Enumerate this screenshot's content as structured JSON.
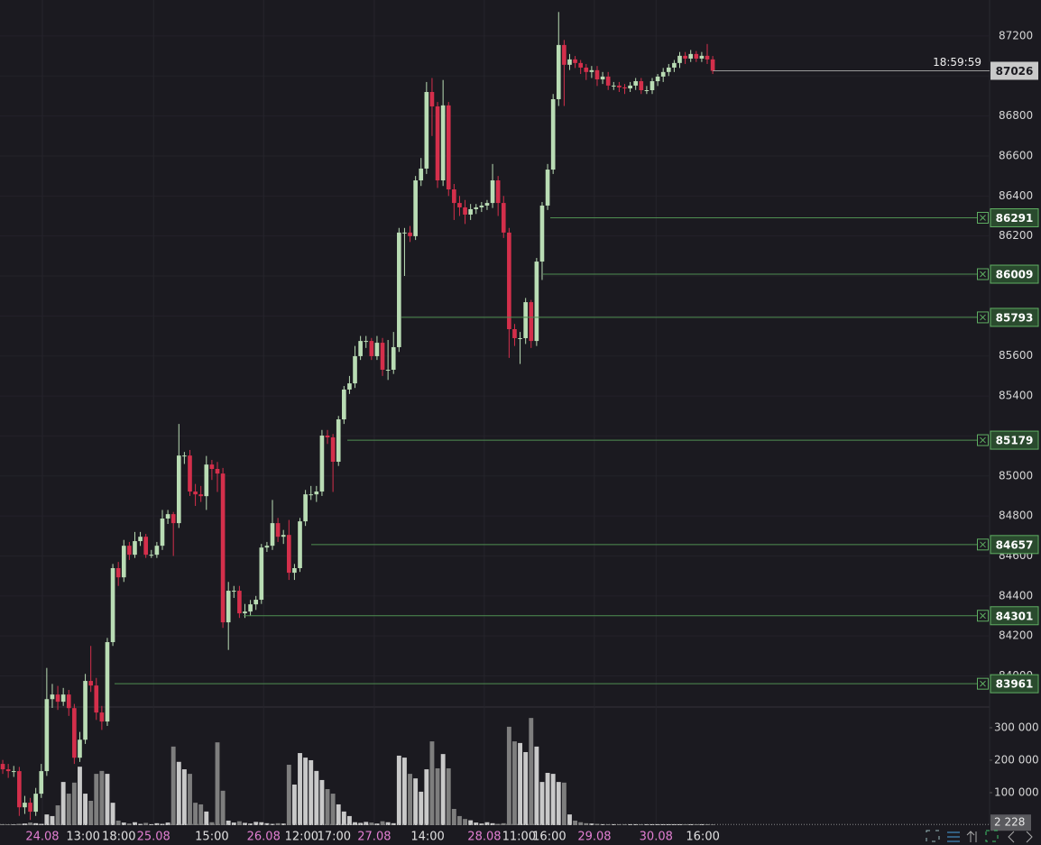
{
  "chart_data": {
    "type": "candlestick",
    "open": [
      83560,
      83533,
      83524,
      83524,
      83343,
      83366,
      83321,
      83411,
      83524,
      83884,
      83907,
      83871,
      83907,
      83839,
      83591,
      83681,
      83975,
      83952,
      83817,
      83772,
      84169,
      84539,
      84493,
      84651,
      84606,
      84674,
      84696,
      84606,
      84606,
      84651,
      84787,
      84809,
      84764,
      85102,
      85102,
      84922,
      84908,
      84899,
      85057,
      85035,
      85012,
      84268,
      84426,
      84426,
      84313,
      84322,
      84358,
      84381,
      84642,
      84651,
      84764,
      84696,
      84705,
      84516,
      84539,
      84773,
      84908,
      84908,
      84922,
      85202,
      85193,
      85071,
      85283,
      85432,
      85463,
      85599,
      85675,
      85675,
      85599,
      85666,
      85531,
      85531,
      85644,
      86217,
      86217,
      86199,
      86478,
      86537,
      86920,
      86848,
      86478,
      86853,
      86433,
      86365,
      86343,
      86307,
      86334,
      86343,
      86352,
      86365,
      86478,
      86365,
      86217,
      85734,
      85689,
      85689,
      85869,
      85675,
      86072,
      86352,
      86532,
      86884,
      87155,
      87056,
      87083,
      87065,
      87042,
      87020,
      87029,
      86983,
      86997,
      86952,
      86952,
      86943,
      86938,
      86952,
      86974,
      86929,
      86929,
      86974,
      86997,
      87020,
      87042,
      87065,
      87101,
      87087,
      87110,
      87087,
      87101,
      87083
    ],
    "high": [
      83580,
      83560,
      83550,
      83545,
      83400,
      83390,
      83440,
      83560,
      84040,
      83960,
      83950,
      83940,
      83930,
      83860,
      83720,
      84010,
      84150,
      83990,
      83850,
      84190,
      84560,
      84570,
      84680,
      84670,
      84720,
      84720,
      84710,
      84630,
      84670,
      84830,
      84830,
      84820,
      85260,
      85120,
      85130,
      84960,
      84950,
      85100,
      85080,
      85070,
      85040,
      84470,
      84450,
      84450,
      84360,
      84380,
      84400,
      84660,
      84670,
      84880,
      84790,
      84730,
      84780,
      84560,
      84790,
      84930,
      84950,
      84950,
      85230,
      85230,
      85210,
      85300,
      85450,
      85500,
      85650,
      85700,
      85700,
      85690,
      85700,
      85690,
      85680,
      85720,
      86240,
      86240,
      86250,
      86500,
      86590,
      86970,
      86990,
      86870,
      86980,
      86870,
      86460,
      86400,
      86380,
      86360,
      86360,
      86370,
      86380,
      86560,
      86500,
      86400,
      86240,
      85760,
      85720,
      85890,
      85880,
      86090,
      86370,
      86560,
      86910,
      87320,
      87180,
      87110,
      87100,
      87080,
      87060,
      87050,
      87050,
      87020,
      87020,
      86970,
      86970,
      86960,
      86970,
      86990,
      86990,
      86950,
      86990,
      87010,
      87040,
      87060,
      87080,
      87120,
      87120,
      87130,
      87125,
      87120,
      87160,
      87100
    ],
    "low": [
      83510,
      83490,
      83495,
      83300,
      83310,
      83280,
      83300,
      83390,
      83500,
      83840,
      83830,
      83850,
      83800,
      83560,
      83570,
      83660,
      83920,
      83780,
      83730,
      83750,
      84150,
      84450,
      84470,
      84580,
      84590,
      84650,
      84590,
      84590,
      84590,
      84630,
      84760,
      84600,
      84740,
      85060,
      84900,
      84850,
      84870,
      84830,
      84980,
      84920,
      84240,
      84130,
      84390,
      84290,
      84290,
      84300,
      84330,
      84360,
      84620,
      84630,
      84670,
      84660,
      84480,
      84480,
      84520,
      84750,
      84880,
      84870,
      84900,
      85160,
      84920,
      85050,
      85260,
      85410,
      85440,
      85580,
      85640,
      85580,
      85580,
      85500,
      85480,
      85510,
      85620,
      86000,
      86170,
      86180,
      86450,
      86510,
      86700,
      86440,
      86450,
      86400,
      86280,
      86300,
      86260,
      86280,
      86310,
      86320,
      86330,
      86340,
      86300,
      86190,
      85590,
      85650,
      85560,
      85660,
      85640,
      85650,
      85980,
      86330,
      86510,
      86850,
      86850,
      87030,
      87040,
      87010,
      86980,
      86990,
      86950,
      86960,
      86930,
      86930,
      86920,
      86910,
      86920,
      86930,
      86910,
      86910,
      86910,
      86950,
      86970,
      87000,
      87020,
      87040,
      87060,
      87070,
      87070,
      87070,
      87060,
      87010
    ],
    "close": [
      83533,
      83524,
      83524,
      83343,
      83366,
      83321,
      83411,
      83524,
      83884,
      83907,
      83871,
      83907,
      83839,
      83591,
      83681,
      83975,
      83952,
      83817,
      83772,
      84169,
      84539,
      84493,
      84651,
      84606,
      84674,
      84696,
      84606,
      84606,
      84651,
      84787,
      84809,
      84764,
      85102,
      85102,
      84922,
      84908,
      84899,
      85057,
      85035,
      85012,
      84268,
      84426,
      84426,
      84313,
      84322,
      84358,
      84381,
      84642,
      84651,
      84764,
      84696,
      84705,
      84516,
      84539,
      84773,
      84908,
      84908,
      84922,
      85202,
      85193,
      85071,
      85283,
      85432,
      85463,
      85599,
      85675,
      85675,
      85599,
      85666,
      85531,
      85531,
      85644,
      86217,
      86217,
      86199,
      86478,
      86537,
      86920,
      86848,
      86478,
      86853,
      86433,
      86365,
      86343,
      86307,
      86334,
      86343,
      86352,
      86365,
      86478,
      86365,
      86217,
      85734,
      85689,
      85689,
      85869,
      85675,
      86072,
      86352,
      86532,
      86884,
      87155,
      87056,
      87083,
      87065,
      87042,
      87020,
      87029,
      86983,
      86997,
      86952,
      86952,
      86943,
      86938,
      86952,
      86974,
      86929,
      86929,
      86974,
      86997,
      87020,
      87042,
      87065,
      87101,
      87087,
      87110,
      87087,
      87101,
      87083,
      87026
    ],
    "volume": [
      3000,
      2500,
      2000,
      4000,
      5000,
      8000,
      6000,
      4000,
      33000,
      28000,
      61000,
      133000,
      97000,
      131000,
      180000,
      97000,
      75000,
      158000,
      167000,
      158000,
      69000,
      14000,
      8000,
      5000,
      9000,
      4000,
      7000,
      3000,
      6000,
      4000,
      8000,
      242000,
      195000,
      172000,
      158000,
      69000,
      64000,
      42000,
      9000,
      255000,
      106000,
      14000,
      8000,
      12000,
      7000,
      5000,
      10000,
      9000,
      6000,
      4000,
      6000,
      5000,
      186000,
      125000,
      222000,
      208000,
      200000,
      167000,
      139000,
      111000,
      97000,
      64000,
      42000,
      28000,
      9000,
      7000,
      10000,
      8000,
      5000,
      12000,
      9000,
      6000,
      214000,
      208000,
      158000,
      144000,
      103000,
      172000,
      258000,
      175000,
      219000,
      175000,
      50000,
      28000,
      19000,
      15000,
      8000,
      5000,
      9000,
      6000,
      4000,
      6000,
      303000,
      258000,
      253000,
      225000,
      330000,
      242000,
      133000,
      161000,
      158000,
      133000,
      131000,
      33000,
      14000,
      9000,
      6000,
      5000,
      4000,
      3000,
      3000,
      3000,
      3000,
      3000,
      3000,
      3000,
      3000,
      3000,
      3000,
      3000,
      3000,
      3000,
      3000,
      3000,
      3000,
      3000,
      3000,
      3000,
      3000,
      2228
    ],
    "up_color": "#b9dcb4",
    "down_color": "#d42f4b",
    "xlim": [
      -0.5,
      179.3
    ],
    "xticks": [
      {
        "value": 7.2,
        "label": "24.08"
      },
      {
        "value": 14.6,
        "label": "13:00"
      },
      {
        "value": 21.1,
        "label": "18:00"
      },
      {
        "value": 27.4,
        "label": "25.08"
      },
      {
        "value": 38,
        "label": "15:00"
      },
      {
        "value": 47.4,
        "label": "26.08"
      },
      {
        "value": 54.3,
        "label": "12:00"
      },
      {
        "value": 60.2,
        "label": "17:00"
      },
      {
        "value": 67.5,
        "label": "27.08"
      },
      {
        "value": 77.2,
        "label": "14:00"
      },
      {
        "value": 87.5,
        "label": "28.08"
      },
      {
        "value": 93.8,
        "label": "11:00"
      },
      {
        "value": 99.3,
        "label": "16:00"
      },
      {
        "value": 107.5,
        "label": "29.08"
      },
      {
        "value": 118.7,
        "label": "30.08"
      },
      {
        "value": 127.2,
        "label": "16:00"
      }
    ],
    "ylim": [
      83849,
      87380
    ],
    "yticks": [
      84000,
      84200,
      84400,
      84600,
      84800,
      85000,
      85200,
      85400,
      85600,
      85800,
      86000,
      86200,
      86400,
      86600,
      86800,
      87000,
      87200
    ],
    "volume_ylim": [
      0,
      361000
    ],
    "volume_yticks": [
      {
        "value": 100000,
        "label": "100 000"
      },
      {
        "value": 200000,
        "label": "200 000"
      },
      {
        "value": 300000,
        "label": "300 000"
      }
    ],
    "volume_last": {
      "value": 2228,
      "label": "2 228"
    },
    "last_price": 87026,
    "countdown": "18:59:59",
    "levels": [
      86291,
      86009,
      85793,
      85179,
      84657,
      84301,
      83961
    ]
  }
}
